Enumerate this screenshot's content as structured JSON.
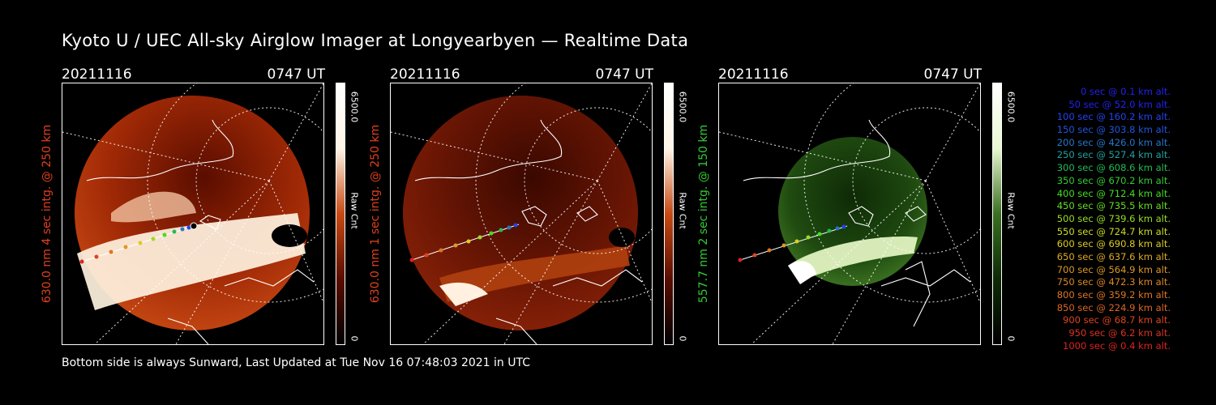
{
  "title": "Kyoto U / UEC All-sky Airglow Imager at Longyearbyen — Realtime Data",
  "footer": "Bottom side is always Sunward, Last Updated at Tue Nov 16 07:48:03 2021 in UTC",
  "panels": [
    {
      "date": "20211116",
      "time": "0747 UT",
      "ylabel": "630.0 nm 4 sec intg. @ 250 km",
      "ylabel_color": "#e0401c",
      "cbar_max": "6500.0",
      "cbar_min": "0",
      "cbar_unit": "Raw Cnt",
      "colormap": "red"
    },
    {
      "date": "20211116",
      "time": "0747 UT",
      "ylabel": "630.0 nm 1 sec intg. @ 250 km",
      "ylabel_color": "#e0401c",
      "cbar_max": "6500.0",
      "cbar_min": "0",
      "cbar_unit": "Raw Cnt",
      "colormap": "red"
    },
    {
      "date": "20211116",
      "time": "0747 UT",
      "ylabel": "557.7 nm 2 sec intg. @ 150 km",
      "ylabel_color": "#33cc33",
      "cbar_max": "6500.0",
      "cbar_min": "0",
      "cbar_unit": "Raw Cnt",
      "colormap": "green"
    }
  ],
  "legend": [
    {
      "text": "0 sec @    0.1 km alt.",
      "color": "#2222ee"
    },
    {
      "text": "50 sec @   52.0 km alt.",
      "color": "#2222ee"
    },
    {
      "text": "100 sec @  160.2 km alt.",
      "color": "#2244ee"
    },
    {
      "text": "150 sec @  303.8 km alt.",
      "color": "#2255dd"
    },
    {
      "text": "200 sec @  426.0 km alt.",
      "color": "#2277cc"
    },
    {
      "text": "250 sec @  527.4 km alt.",
      "color": "#22a0a0"
    },
    {
      "text": "300 sec @  608.6 km alt.",
      "color": "#22bb55"
    },
    {
      "text": "350 sec @  670.2 km alt.",
      "color": "#33cc33"
    },
    {
      "text": "400 sec @  712.4 km alt.",
      "color": "#44dd22"
    },
    {
      "text": "450 sec @  735.5 km alt.",
      "color": "#66dd22"
    },
    {
      "text": "500 sec @  739.6 km alt.",
      "color": "#99dd22"
    },
    {
      "text": "550 sec @  724.7 km alt.",
      "color": "#ccdd22"
    },
    {
      "text": "600 sec @  690.8 km alt.",
      "color": "#ddcc22"
    },
    {
      "text": "650 sec @  637.6 km alt.",
      "color": "#ddaa22"
    },
    {
      "text": "700 sec @  564.9 km alt.",
      "color": "#dd9922"
    },
    {
      "text": "750 sec @  472.3 km alt.",
      "color": "#dd8822"
    },
    {
      "text": "800 sec @  359.2 km alt.",
      "color": "#dd7722"
    },
    {
      "text": "850 sec @  224.9 km alt.",
      "color": "#dd6622"
    },
    {
      "text": "900 sec @   68.7 km alt.",
      "color": "#dd4422"
    },
    {
      "text": "950 sec @    6.2 km alt.",
      "color": "#dd3322"
    },
    {
      "text": "1000 sec @    0.4 km alt.",
      "color": "#dd2222"
    }
  ]
}
